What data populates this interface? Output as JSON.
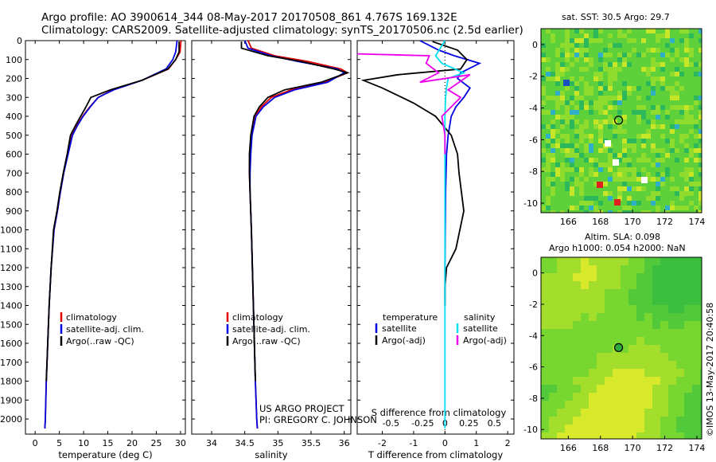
{
  "header": {
    "line1": "Argo profile: AO 3900614_344 08-May-2017 20170508_861 4.767S 169.132E",
    "line2": "Climatology: CARS2009. Satellite-adjusted climatology: synTS_20170506.nc (2.5d earlier)"
  },
  "map_top_title": "sat. SST: 30.5 Argo: 29.7",
  "map_bottom_title1": "Altim. SLA: 0.098",
  "map_bottom_title2": "Argo h1000: 0.054 h2000: NaN",
  "side_label": "©IMOS 13-May-2017 20:40:58",
  "credit1": "US ARGO PROJECT",
  "credit2": "PI: GREGORY C. JOHNSON",
  "colors": {
    "climatology": "#e00000",
    "satellite": "#0000e0",
    "argo": "#000000",
    "sat_salinity": "#00e0f0",
    "argo_salinity": "#f000f0"
  },
  "chart_data": [
    {
      "type": "line",
      "id": "temperature",
      "xlabel": "temperature (deg C)",
      "ylabel": "",
      "xlim": [
        -2,
        31
      ],
      "ylim": [
        2080,
        0
      ],
      "xticks": [
        0,
        5,
        10,
        15,
        20,
        25,
        30
      ],
      "yticks": [
        0,
        100,
        200,
        300,
        400,
        500,
        600,
        700,
        800,
        900,
        1000,
        1100,
        1200,
        1300,
        1400,
        1500,
        1600,
        1700,
        1800,
        1900,
        2000
      ],
      "legend": [
        "climatology",
        "satellite-adj. clim.",
        "Argo(..raw -QC)"
      ],
      "series": [
        {
          "name": "climatology",
          "color": "#e00000",
          "x": [
            30.1,
            29.9,
            29.0,
            27.5,
            22,
            16,
            13,
            11.3,
            9.8,
            8.6,
            7.6,
            6.7,
            5.9,
            5.2,
            4.6,
            3.9,
            3.3,
            2.9,
            2.6,
            2.3,
            2.1,
            2.0
          ],
          "y": [
            0,
            60,
            100,
            150,
            210,
            260,
            300,
            350,
            400,
            450,
            500,
            600,
            700,
            800,
            900,
            1000,
            1200,
            1400,
            1600,
            1800,
            2000,
            2050
          ]
        },
        {
          "name": "satellite-adj. clim.",
          "color": "#0000e0",
          "x": [
            29.3,
            29.0,
            28.4,
            27.0,
            22,
            16.2,
            13,
            11.4,
            9.9,
            8.7,
            7.7,
            6.8,
            5.9,
            5.2,
            4.6,
            3.9,
            3.3,
            2.9,
            2.6,
            2.3,
            2.1,
            2.0
          ],
          "y": [
            0,
            60,
            100,
            150,
            210,
            260,
            300,
            350,
            400,
            450,
            500,
            600,
            700,
            800,
            900,
            1000,
            1200,
            1400,
            1600,
            1800,
            2000,
            2050
          ]
        },
        {
          "name": "Argo(..raw -QC)",
          "color": "#000000",
          "x": [
            29.7,
            29.7,
            29.0,
            27.4,
            22,
            15.5,
            11.5,
            10.5,
            9.4,
            8.3,
            7.3,
            6.6,
            5.8,
            5.1,
            4.5,
            3.8,
            3.3,
            2.9,
            2.6,
            2.3
          ],
          "y": [
            5,
            60,
            100,
            150,
            210,
            260,
            300,
            350,
            400,
            450,
            500,
            600,
            700,
            800,
            900,
            1000,
            1200,
            1400,
            1600,
            1800
          ]
        }
      ]
    },
    {
      "type": "line",
      "id": "salinity",
      "xlabel": "salinity",
      "xlim": [
        33.7,
        36.1
      ],
      "ylim": [
        2080,
        0
      ],
      "xticks": [
        34,
        34.5,
        35,
        35.5,
        36
      ],
      "legend": [
        "climatology",
        "satellite-adj. clim.",
        "Argo(..raw -QC)"
      ],
      "series": [
        {
          "name": "climatology",
          "color": "#e00000",
          "x": [
            34.55,
            34.6,
            34.95,
            35.45,
            35.95,
            36.05,
            35.7,
            35.2,
            34.9,
            34.75,
            34.65,
            34.6,
            34.58,
            34.57,
            34.58,
            34.6,
            34.63,
            34.66,
            34.68,
            34.69
          ],
          "y": [
            0,
            40,
            80,
            110,
            150,
            170,
            220,
            260,
            300,
            350,
            400,
            500,
            600,
            700,
            800,
            1000,
            1400,
            1800,
            2000,
            2050
          ]
        },
        {
          "name": "satellite-adj. clim.",
          "color": "#0000e0",
          "x": [
            34.5,
            34.55,
            34.9,
            35.3,
            35.9,
            36.0,
            35.75,
            35.25,
            34.95,
            34.78,
            34.67,
            34.61,
            34.59,
            34.58,
            34.58,
            34.6,
            34.63,
            34.66,
            34.68,
            34.69
          ],
          "y": [
            0,
            40,
            80,
            110,
            150,
            170,
            220,
            260,
            300,
            350,
            400,
            500,
            600,
            700,
            800,
            1000,
            1400,
            1800,
            2000,
            2050
          ]
        },
        {
          "name": "Argo(..raw -QC)",
          "color": "#000000",
          "x": [
            34.45,
            34.45,
            34.85,
            35.35,
            35.85,
            36.05,
            35.65,
            35.1,
            34.85,
            34.72,
            34.64,
            34.59,
            34.57,
            34.57,
            34.58,
            34.6,
            34.63,
            34.66
          ],
          "y": [
            5,
            40,
            80,
            110,
            150,
            170,
            220,
            260,
            300,
            350,
            400,
            500,
            600,
            700,
            800,
            1000,
            1400,
            1800
          ]
        }
      ]
    },
    {
      "type": "line",
      "id": "difference",
      "xlabel": "T difference from climatology",
      "xlabel_top": "S difference from climatology",
      "xlim": [
        -2.8,
        2.2
      ],
      "ylim": [
        2080,
        0
      ],
      "xticks": [
        -2,
        -1,
        0,
        1,
        2
      ],
      "xticks_S": [
        "-0.5",
        "-0.25",
        "0",
        "0.25",
        "0.5"
      ],
      "legend": [
        "temperature",
        "satellite",
        "Argo(-adj)",
        "salinity",
        "satellite",
        "Argo(-adj)"
      ],
      "series": [
        {
          "name": "T satellite",
          "color": "#0000e0",
          "x": [
            -0.8,
            -0.2,
            0.3,
            1.1,
            0.5,
            0.4,
            0.8,
            0.6,
            0.35,
            0.2,
            0.1,
            0.05,
            0.02,
            0.0,
            0.0
          ],
          "y": [
            0,
            50,
            80,
            120,
            170,
            200,
            250,
            300,
            350,
            400,
            500,
            600,
            800,
            1200,
            1400
          ]
        },
        {
          "name": "T Argo(-adj)",
          "color": "#000000",
          "x": [
            -0.4,
            0.4,
            0.7,
            0.5,
            -1.5,
            -2.6,
            -2.0,
            -1.0,
            -0.3,
            0.2,
            0.4,
            0.45,
            0.6,
            0.35,
            0.05,
            0.0,
            0.0
          ],
          "y": [
            5,
            50,
            100,
            150,
            180,
            210,
            250,
            330,
            400,
            500,
            600,
            700,
            900,
            1100,
            1200,
            1300,
            1400
          ]
        },
        {
          "name": "S satellite",
          "color": "#00e0f0",
          "x": [
            0.0,
            -0.3,
            -0.1,
            0.6,
            0.1,
            0.05,
            0.02,
            0.0,
            0.0,
            0.0,
            0.0,
            0.0,
            0.0,
            0.0,
            0.0,
            0.0
          ],
          "y": [
            0,
            80,
            120,
            170,
            200,
            250,
            300,
            400,
            600,
            800,
            1000,
            1200,
            1400,
            1700,
            1900,
            2050
          ]
        },
        {
          "name": "S Argo(-adj)",
          "color": "#f000f0",
          "x": [
            -2.8,
            -0.5,
            -0.6,
            -0.2,
            -0.8,
            0.8,
            0.1,
            0.5,
            -0.1,
            0.0,
            0.0
          ],
          "y": [
            70,
            80,
            120,
            170,
            220,
            180,
            260,
            300,
            400,
            500,
            600
          ]
        }
      ]
    }
  ],
  "map_sst": {
    "type": "heatmap",
    "xticks": [
      "166",
      "168",
      "170",
      "172",
      "174"
    ],
    "yticks": [
      "0",
      "-2",
      "-4",
      "-6",
      "-8",
      "-10"
    ],
    "xlim": [
      164.3,
      174.3
    ],
    "ylim": [
      -10.6,
      1.0
    ],
    "argo_position": [
      169.13,
      -4.77
    ]
  },
  "map_sla": {
    "type": "heatmap",
    "xticks": [
      "166",
      "168",
      "170",
      "172",
      "174"
    ],
    "yticks": [
      "0",
      "-2",
      "-4",
      "-6",
      "-8",
      "-10"
    ],
    "xlim": [
      164.3,
      174.3
    ],
    "ylim": [
      -10.6,
      1.0
    ],
    "argo_position": [
      169.13,
      -4.77
    ]
  }
}
